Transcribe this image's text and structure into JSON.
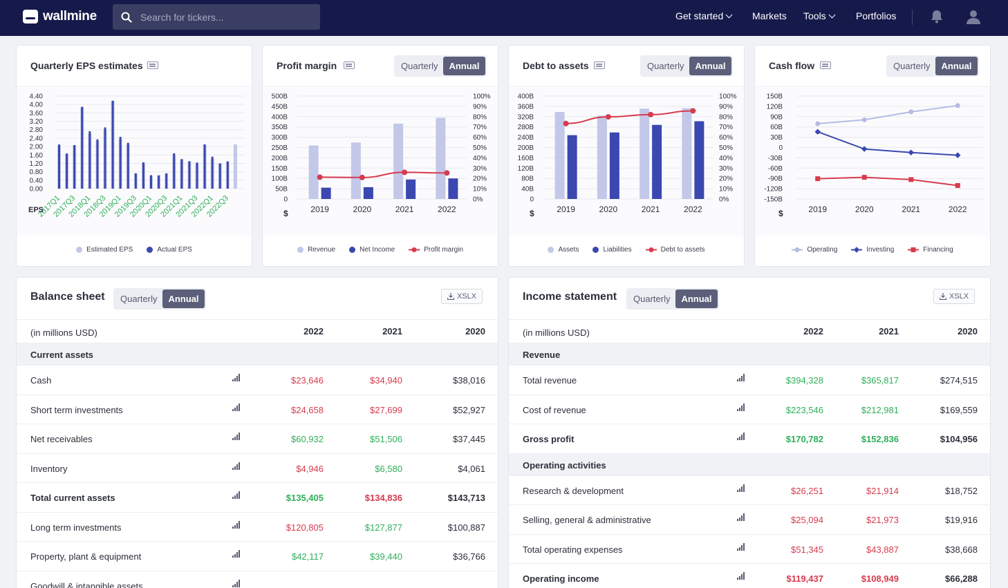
{
  "nav": {
    "logo": "wallmine",
    "search_placeholder": "Search for tickers...",
    "menu": [
      "Get started",
      "Markets",
      "Tools",
      "Portfolios"
    ]
  },
  "cards": {
    "eps": {
      "title": "Quarterly EPS estimates",
      "legend": [
        "Estimated EPS",
        "Actual EPS"
      ],
      "ylabel": "EPS"
    },
    "margin": {
      "title": "Profit margin",
      "toggle": [
        "Quarterly",
        "Annual"
      ],
      "legend": [
        "Revenue",
        "Net Income",
        "Profit margin"
      ]
    },
    "debt": {
      "title": "Debt to assets",
      "toggle": [
        "Quarterly",
        "Annual"
      ],
      "legend": [
        "Assets",
        "Liabilities",
        "Debt to assets"
      ]
    },
    "cash": {
      "title": "Cash flow",
      "toggle": [
        "Quarterly",
        "Annual"
      ],
      "legend": [
        "Operating",
        "Investing",
        "Financing"
      ]
    }
  },
  "colors": {
    "nav": "#161a4b",
    "estimated": "#c3c7e8",
    "actual": "#3b48b0",
    "margin_line": "#d63b4e",
    "positive": "#2eaf5a",
    "negative": "#d63b4e"
  },
  "chart_data": [
    {
      "type": "bar",
      "title": "Quarterly EPS estimates",
      "ylabel": "EPS",
      "ylim": [
        0,
        4.4
      ],
      "yticks": [
        "4.40",
        "4.00",
        "3.60",
        "3.20",
        "2.80",
        "2.40",
        "2.00",
        "1.60",
        "1.20",
        "0.80",
        "0.40",
        "0.00"
      ],
      "categories": [
        "2017Q1",
        "2017Q2",
        "2017Q3",
        "2017Q4",
        "2018Q1",
        "2018Q2",
        "2018Q3",
        "2018Q4",
        "2019Q1",
        "2019Q2",
        "2019Q3",
        "2019Q4",
        "2020Q1",
        "2020Q2",
        "2020Q3",
        "2020Q4",
        "2021Q1",
        "2021Q2",
        "2021Q3",
        "2021Q4",
        "2022Q1",
        "2022Q2",
        "2022Q3",
        "2022Q4"
      ],
      "xticklabels": [
        "2017Q1",
        "2017Q3",
        "2018Q1",
        "2018Q3",
        "2019Q1",
        "2019Q3",
        "2020Q1",
        "2020Q3",
        "2021Q1",
        "2021Q3",
        "2022Q1",
        "2022Q3"
      ],
      "series": [
        {
          "name": "Estimated EPS",
          "values": [
            2.05,
            1.65,
            2.05,
            3.85,
            2.6,
            2.25,
            2.8,
            4.15,
            2.35,
            2.1,
            0.7,
            1.2,
            0.6,
            0.65,
            0.7,
            1.6,
            1.4,
            1.3,
            1.2,
            2.1,
            1.4,
            1.2,
            1.3,
            2.1
          ]
        },
        {
          "name": "Actual EPS",
          "values": [
            2.1,
            1.67,
            2.07,
            3.89,
            2.73,
            2.34,
            2.91,
            4.18,
            2.46,
            2.18,
            0.73,
            1.25,
            0.64,
            0.62,
            0.73,
            1.68,
            1.4,
            1.3,
            1.24,
            2.1,
            1.52,
            1.2,
            1.29,
            null
          ]
        }
      ]
    },
    {
      "type": "bar",
      "title": "Profit margin",
      "ylabel": "$",
      "categories": [
        "2019",
        "2020",
        "2021",
        "2022"
      ],
      "ylim": [
        0,
        500
      ],
      "yticks": [
        "500B",
        "450B",
        "400B",
        "350B",
        "300B",
        "250B",
        "200B",
        "150B",
        "100B",
        "50B",
        "0"
      ],
      "y2lim": [
        0,
        100
      ],
      "y2ticks": [
        "100%",
        "90%",
        "80%",
        "70%",
        "60%",
        "50%",
        "40%",
        "30%",
        "20%",
        "10%",
        "0%"
      ],
      "series": [
        {
          "name": "Revenue",
          "values": [
            260,
            274.5,
            365.8,
            394.3
          ]
        },
        {
          "name": "Net Income",
          "values": [
            55,
            57.4,
            94.7,
            99.8
          ]
        },
        {
          "name": "Profit margin",
          "values": [
            21.2,
            20.9,
            25.9,
            25.3
          ],
          "axis": "right",
          "type": "line"
        }
      ]
    },
    {
      "type": "bar",
      "title": "Debt to assets",
      "ylabel": "$",
      "categories": [
        "2019",
        "2020",
        "2021",
        "2022"
      ],
      "ylim": [
        0,
        400
      ],
      "yticks": [
        "400B",
        "360B",
        "320B",
        "280B",
        "240B",
        "200B",
        "160B",
        "120B",
        "80B",
        "40B",
        "0"
      ],
      "y2lim": [
        0,
        100
      ],
      "y2ticks": [
        "100%",
        "90%",
        "80%",
        "70%",
        "60%",
        "50%",
        "40%",
        "30%",
        "20%",
        "10%",
        "0%"
      ],
      "series": [
        {
          "name": "Assets",
          "values": [
            338.5,
            323.9,
            351,
            352.8
          ]
        },
        {
          "name": "Liabilities",
          "values": [
            248,
            258.5,
            287.9,
            302.1
          ]
        },
        {
          "name": "Debt to assets",
          "values": [
            73.3,
            79.8,
            82,
            85.6
          ],
          "axis": "right",
          "type": "line"
        }
      ]
    },
    {
      "type": "line",
      "title": "Cash flow",
      "ylabel": "$",
      "categories": [
        "2019",
        "2020",
        "2021",
        "2022"
      ],
      "ylim": [
        -150,
        150
      ],
      "yticks": [
        "150B",
        "120B",
        "90B",
        "60B",
        "30B",
        "0",
        "-30B",
        "-60B",
        "-90B",
        "-120B",
        "-150B"
      ],
      "series": [
        {
          "name": "Operating",
          "values": [
            69.4,
            80.7,
            104,
            122.2
          ]
        },
        {
          "name": "Investing",
          "values": [
            45.9,
            -4.3,
            -14.5,
            -22.4
          ]
        },
        {
          "name": "Financing",
          "values": [
            -90.9,
            -86.8,
            -93.4,
            -110.7
          ]
        }
      ]
    }
  ],
  "balance": {
    "title": "Balance sheet",
    "toggle": [
      "Quarterly",
      "Annual"
    ],
    "xlsx": "XSLX",
    "caption": "(in millions USD)",
    "years": [
      "2022",
      "2021",
      "2020"
    ],
    "section": "Current assets",
    "rows": [
      {
        "label": "Cash",
        "bold": false,
        "values": [
          "$23,646",
          "$34,940",
          "$38,016"
        ],
        "tone": [
          "neg",
          "neg",
          "neu"
        ]
      },
      {
        "label": "Short term investments",
        "bold": false,
        "values": [
          "$24,658",
          "$27,699",
          "$52,927"
        ],
        "tone": [
          "neg",
          "neg",
          "neu"
        ]
      },
      {
        "label": "Net receivables",
        "bold": false,
        "values": [
          "$60,932",
          "$51,506",
          "$37,445"
        ],
        "tone": [
          "pos",
          "pos",
          "neu"
        ]
      },
      {
        "label": "Inventory",
        "bold": false,
        "values": [
          "$4,946",
          "$6,580",
          "$4,061"
        ],
        "tone": [
          "neg",
          "pos",
          "neu"
        ]
      },
      {
        "label": "Total current assets",
        "bold": true,
        "values": [
          "$135,405",
          "$134,836",
          "$143,713"
        ],
        "tone": [
          "pos",
          "neg",
          "neu"
        ]
      },
      {
        "label": "Long term investments",
        "bold": false,
        "values": [
          "$120,805",
          "$127,877",
          "$100,887"
        ],
        "tone": [
          "neg",
          "pos",
          "neu"
        ]
      },
      {
        "label": "Property, plant & equipment",
        "bold": false,
        "values": [
          "$42,117",
          "$39,440",
          "$36,766"
        ],
        "tone": [
          "pos",
          "pos",
          "neu"
        ]
      },
      {
        "label": "Goodwill & intangible assets",
        "bold": false,
        "values": [
          "",
          "",
          ""
        ],
        "tone": [
          "neu",
          "neu",
          "neu"
        ]
      }
    ]
  },
  "income": {
    "title": "Income statement",
    "toggle": [
      "Quarterly",
      "Annual"
    ],
    "xlsx": "XSLX",
    "caption": "(in millions USD)",
    "years": [
      "2022",
      "2021",
      "2020"
    ],
    "section1": "Revenue",
    "rows1": [
      {
        "label": "Total revenue",
        "bold": false,
        "values": [
          "$394,328",
          "$365,817",
          "$274,515"
        ],
        "tone": [
          "pos",
          "pos",
          "neu"
        ]
      },
      {
        "label": "Cost of revenue",
        "bold": false,
        "values": [
          "$223,546",
          "$212,981",
          "$169,559"
        ],
        "tone": [
          "pos",
          "pos",
          "neu"
        ]
      },
      {
        "label": "Gross profit",
        "bold": true,
        "values": [
          "$170,782",
          "$152,836",
          "$104,956"
        ],
        "tone": [
          "pos",
          "pos",
          "neu"
        ]
      }
    ],
    "section2": "Operating activities",
    "rows2": [
      {
        "label": "Research & development",
        "bold": false,
        "values": [
          "$26,251",
          "$21,914",
          "$18,752"
        ],
        "tone": [
          "neg",
          "neg",
          "neu"
        ]
      },
      {
        "label": "Selling, general & administrative",
        "bold": false,
        "values": [
          "$25,094",
          "$21,973",
          "$19,916"
        ],
        "tone": [
          "neg",
          "neg",
          "neu"
        ]
      },
      {
        "label": "Total operating expenses",
        "bold": false,
        "values": [
          "$51,345",
          "$43,887",
          "$38,668"
        ],
        "tone": [
          "neg",
          "neg",
          "neu"
        ]
      },
      {
        "label": "Operating income",
        "bold": true,
        "values": [
          "$119,437",
          "$108,949",
          "$66,288"
        ],
        "tone": [
          "neg",
          "neg",
          "neu"
        ]
      }
    ]
  }
}
